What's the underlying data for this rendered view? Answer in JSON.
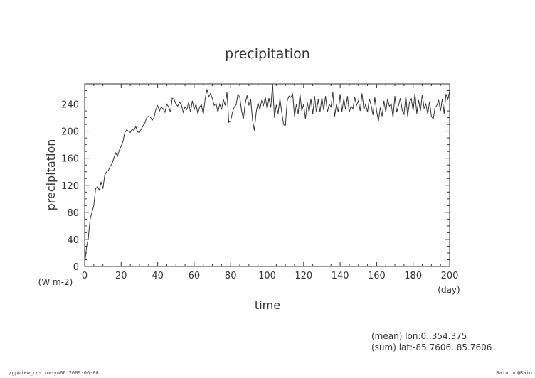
{
  "chart_data": {
    "type": "line",
    "title": "precipitation",
    "xlabel": "time",
    "ylabel": "precipitation",
    "x_unit": "(day)",
    "y_unit": "(W m-2)",
    "xlim": [
      0,
      200
    ],
    "ylim": [
      0,
      270
    ],
    "x_ticks": [
      0,
      20,
      40,
      60,
      80,
      100,
      120,
      140,
      160,
      180,
      200
    ],
    "y_ticks": [
      0,
      40,
      80,
      120,
      160,
      200,
      240
    ],
    "grid": false,
    "line_color": "#333333",
    "series": [
      {
        "x": [
          0,
          1,
          2,
          3,
          4,
          5,
          6,
          7,
          8,
          9,
          10,
          11,
          12,
          13,
          14,
          15,
          16,
          17,
          18,
          19,
          20,
          21,
          22,
          23,
          24,
          25,
          26,
          27,
          28,
          29,
          30,
          31,
          32,
          33,
          34,
          35,
          36,
          37,
          38,
          39,
          40,
          41,
          42,
          43,
          44,
          45,
          46,
          47,
          48,
          49,
          50,
          51,
          52,
          53,
          54,
          55,
          56,
          57,
          58,
          59,
          60,
          61,
          62,
          63,
          64,
          65,
          66,
          67,
          68,
          69,
          70,
          71,
          72,
          73,
          74,
          75,
          76,
          77,
          78,
          79,
          80,
          81,
          82,
          83,
          84,
          85,
          86,
          87,
          88,
          89,
          90,
          91,
          92,
          93,
          94,
          95,
          96,
          97,
          98,
          99,
          100,
          101,
          102,
          103,
          104,
          105,
          106,
          107,
          108,
          109,
          110,
          111,
          112,
          113,
          114,
          115,
          116,
          117,
          118,
          119,
          120,
          121,
          122,
          123,
          124,
          125,
          126,
          127,
          128,
          129,
          130,
          131,
          132,
          133,
          134,
          135,
          136,
          137,
          138,
          139,
          140,
          141,
          142,
          143,
          144,
          145,
          146,
          147,
          148,
          149,
          150,
          151,
          152,
          153,
          154,
          155,
          156,
          157,
          158,
          159,
          160,
          161,
          162,
          163,
          164,
          165,
          166,
          167,
          168,
          169,
          170,
          171,
          172,
          173,
          174,
          175,
          176,
          177,
          178,
          179,
          180,
          181,
          182,
          183,
          184,
          185,
          186,
          187,
          188,
          189,
          190,
          191,
          192,
          193,
          194,
          195,
          196,
          197,
          198,
          199,
          200
        ],
        "values": [
          3,
          28,
          42,
          70,
          80,
          90,
          115,
          118,
          113,
          125,
          115,
          135,
          140,
          142,
          148,
          152,
          160,
          168,
          163,
          172,
          178,
          185,
          198,
          202,
          200,
          198,
          203,
          201,
          207,
          199,
          198,
          203,
          208,
          212,
          220,
          222,
          221,
          216,
          220,
          232,
          238,
          230,
          236,
          233,
          228,
          240,
          236,
          228,
          249,
          247,
          240,
          237,
          243,
          239,
          228,
          236,
          232,
          243,
          228,
          245,
          232,
          240,
          226,
          236,
          239,
          225,
          247,
          262,
          251,
          256,
          248,
          238,
          241,
          228,
          240,
          232,
          247,
          238,
          258,
          213,
          215,
          228,
          236,
          239,
          255,
          250,
          230,
          218,
          241,
          253,
          238,
          247,
          216,
          201,
          228,
          242,
          232,
          245,
          238,
          250,
          233,
          249,
          235,
          270,
          220,
          239,
          226,
          248,
          228,
          210,
          208,
          245,
          252,
          250,
          255,
          222,
          240,
          225,
          255,
          230,
          240,
          218,
          243,
          228,
          248,
          225,
          252,
          228,
          247,
          228,
          250,
          231,
          252,
          228,
          240,
          236,
          258,
          222,
          240,
          228,
          255,
          229,
          248,
          232,
          252,
          228,
          237,
          233,
          250,
          238,
          245,
          230,
          256,
          232,
          240,
          228,
          248,
          238,
          224,
          250,
          230,
          215,
          235,
          222,
          245,
          228,
          248,
          237,
          240,
          220,
          252,
          228,
          238,
          249,
          231,
          225,
          252,
          222,
          243,
          248,
          230,
          256,
          226,
          246,
          230,
          254,
          234,
          240,
          225,
          244,
          222,
          218,
          235,
          238,
          246,
          230,
          248,
          226,
          255,
          247,
          259
        ]
      }
    ]
  },
  "footer": {
    "info_line1": "(mean) lon:0..354.375",
    "info_line2": "(sum) lat:-85.7606..85.7606",
    "left_caption": "../gpview_custom-ym06  2009-06-08",
    "right_caption": "Rain.nc@Rain"
  }
}
